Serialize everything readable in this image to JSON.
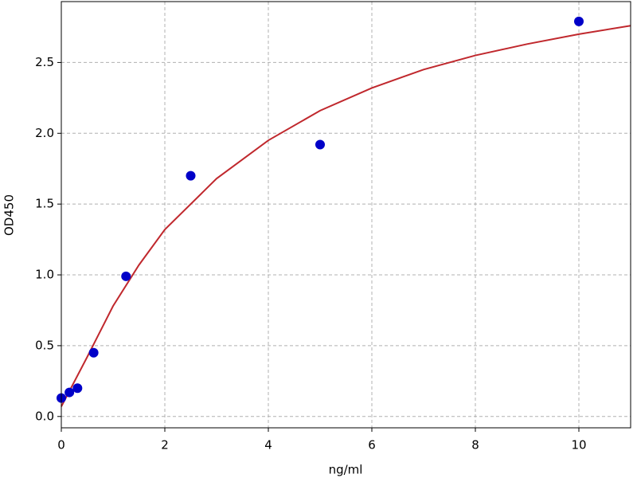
{
  "chart_data": {
    "type": "scatter",
    "xlabel": "ng/ml",
    "ylabel": "OD450",
    "xlim": [
      0,
      11
    ],
    "ylim": [
      -0.08,
      2.93
    ],
    "xticks": [
      0,
      2,
      4,
      6,
      8,
      10
    ],
    "yticks": [
      {
        "value": 0,
        "label": "0.0"
      },
      {
        "value": 0.5,
        "label": "0.5"
      },
      {
        "value": 1,
        "label": "1.0"
      },
      {
        "value": 1.5,
        "label": "1.5"
      },
      {
        "value": 2,
        "label": "2.0"
      },
      {
        "value": 2.5,
        "label": "2.5"
      }
    ],
    "grid": true,
    "series": [
      {
        "type": "scatter",
        "color": "#0000c8",
        "x": [
          0,
          0.156,
          0.3125,
          0.625,
          1.25,
          2.5,
          5,
          10
        ],
        "values": [
          0.13,
          0.17,
          0.2,
          0.45,
          0.99,
          1.7,
          1.92,
          2.79
        ]
      },
      {
        "type": "line",
        "color": "#c0282d",
        "x": [
          0,
          0.5,
          1,
          1.5,
          2,
          3,
          4,
          5,
          6,
          7,
          8,
          9,
          10,
          11
        ],
        "values": [
          0.07,
          0.42,
          0.78,
          1.07,
          1.32,
          1.68,
          1.95,
          2.16,
          2.32,
          2.45,
          2.55,
          2.63,
          2.7,
          2.76
        ]
      }
    ]
  }
}
